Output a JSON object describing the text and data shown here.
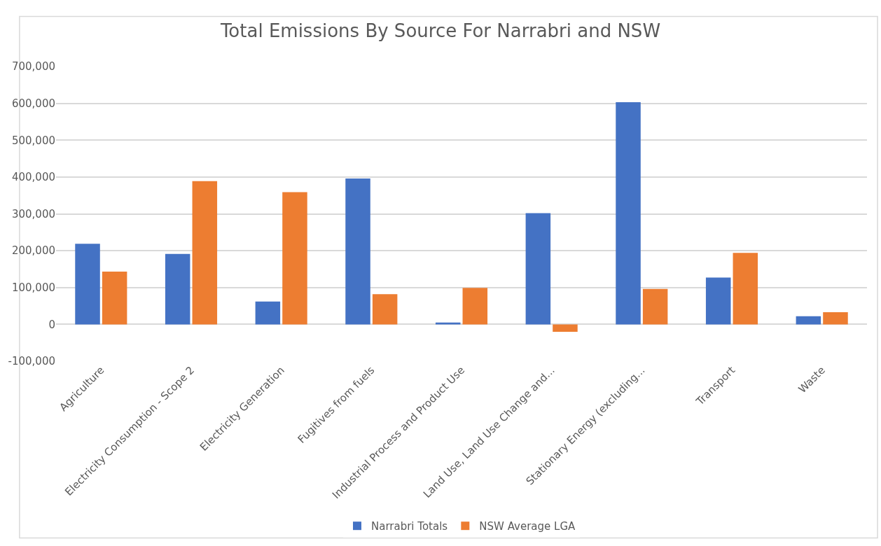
{
  "chart_data": {
    "type": "bar",
    "title": "Total Emissions By Source For Narrabri and NSW",
    "categories": [
      "Agriculture",
      "Electricity Consumption - Scope 2",
      "Electricity Generation",
      "Fugitives from fuels",
      "Industrial Process and Product Use",
      "Land Use, Land Use Change and...",
      "Stationary Energy (excluding...",
      "Transport",
      "Waste"
    ],
    "series": [
      {
        "name": "Narrabri Totals",
        "color": "#4472c4",
        "values": [
          219000,
          191000,
          62000,
          396000,
          5000,
          302000,
          603000,
          127000,
          22000
        ]
      },
      {
        "name": "NSW Average LGA",
        "color": "#ed7d31",
        "values": [
          143000,
          389000,
          359000,
          82000,
          99000,
          -20000,
          96000,
          194000,
          33000
        ]
      }
    ],
    "ylim": [
      -100000,
      700000
    ],
    "yticks": [
      {
        "value": -100000,
        "label": "-100,000"
      },
      0,
      {
        "value": 100000,
        "label": "100,000"
      },
      {
        "value": 200000,
        "label": "200,000"
      },
      {
        "value": 300000,
        "label": "300,000"
      },
      {
        "value": 400000,
        "label": "400,000"
      },
      {
        "value": 500000,
        "label": "500,000"
      },
      {
        "value": 600000,
        "label": "600,000"
      },
      {
        "value": 700000,
        "label": "700,000"
      }
    ],
    "grid": "y",
    "legend": "bottom"
  }
}
